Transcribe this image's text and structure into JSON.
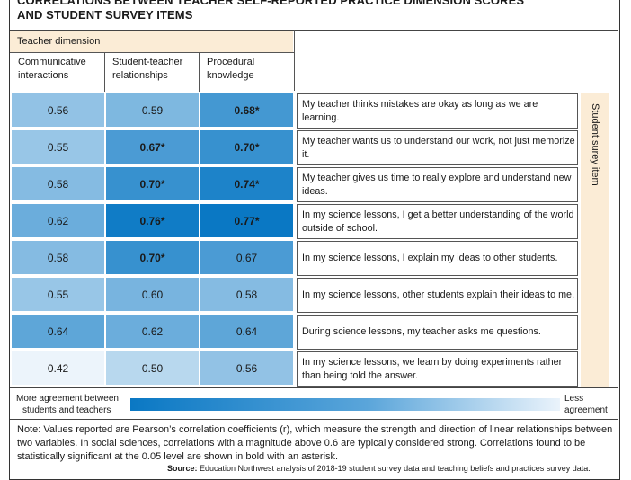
{
  "title": "CORRELATIONS BETWEEN TEACHER SELF-REPORTED PRACTICE DIMENSION SCORES AND STUDENT SURVEY ITEMS",
  "title_line1": "CORRELATIONS BETWEEN TEACHER SELF-REPORTED PRACTICE DIMENSION SCORES",
  "title_line2": "AND STUDENT SURVEY ITEMS",
  "teacher_dimension_label": "Teacher dimension",
  "student_item_label": "Student surey item",
  "legend": {
    "left_line1": "More agreement between",
    "left_line2": "students and teachers",
    "right_line1": "Less",
    "right_line2": "agreement"
  },
  "note": "Note: Values reported are Pearson’s correlation coefficients (r), which measure the strength and direction of linear relationships between two variables. In social sciences, correlations with a magnitude above 0.6 are typically considered strong. Correlations found to be statistically significant at the 0.05 level are shown in bold with an asterisk.",
  "source_label": "Source:",
  "source_text": " Education Northwest analysis of 2018-19 student survey data and teaching beliefs and practices survey data.",
  "colors": {
    "accent_header": "#fbecd6",
    "scale_high": "#0a78c4",
    "scale_low": "#eaf3fb"
  },
  "chart_data": {
    "type": "heatmap",
    "title": "CORRELATIONS BETWEEN TEACHER SELF-REPORTED PRACTICE DIMENSION SCORES AND STUDENT SURVEY ITEMS",
    "columns": [
      {
        "line1": "Communicative",
        "line2": "interactions"
      },
      {
        "line1": "Student-teacher",
        "line2": "relationships"
      },
      {
        "line1": "Procedural",
        "line2": "knowledge"
      }
    ],
    "rows": [
      {
        "item": "My teacher thinks mistakes are okay as long as we are learning.",
        "values": [
          0.56,
          0.59,
          0.68
        ],
        "significant": [
          false,
          false,
          true
        ]
      },
      {
        "item": "My teacher wants us to understand our work, not just memorize it.",
        "values": [
          0.55,
          0.67,
          0.7
        ],
        "significant": [
          false,
          true,
          true
        ]
      },
      {
        "item": "My teacher gives us time to really explore and understand new ideas.",
        "values": [
          0.58,
          0.7,
          0.74
        ],
        "significant": [
          false,
          true,
          true
        ]
      },
      {
        "item": "In my science lessons, I get a better understanding of the world outside of school.",
        "values": [
          0.62,
          0.76,
          0.77
        ],
        "significant": [
          false,
          true,
          true
        ]
      },
      {
        "item": "In my science lessons, I explain my ideas to other students.",
        "values": [
          0.58,
          0.7,
          0.67
        ],
        "significant": [
          false,
          true,
          false
        ]
      },
      {
        "item": "In my science lessons, other students explain their ideas to me.",
        "values": [
          0.55,
          0.6,
          0.58
        ],
        "significant": [
          false,
          false,
          false
        ]
      },
      {
        "item": "During science lessons, my teacher asks me questions.",
        "values": [
          0.64,
          0.62,
          0.64
        ],
        "significant": [
          false,
          false,
          false
        ]
      },
      {
        "item": "In my science lessons, we learn by doing experiments rather than being told the answer.",
        "values": [
          0.42,
          0.5,
          0.56
        ],
        "significant": [
          false,
          false,
          false
        ]
      }
    ]
  }
}
